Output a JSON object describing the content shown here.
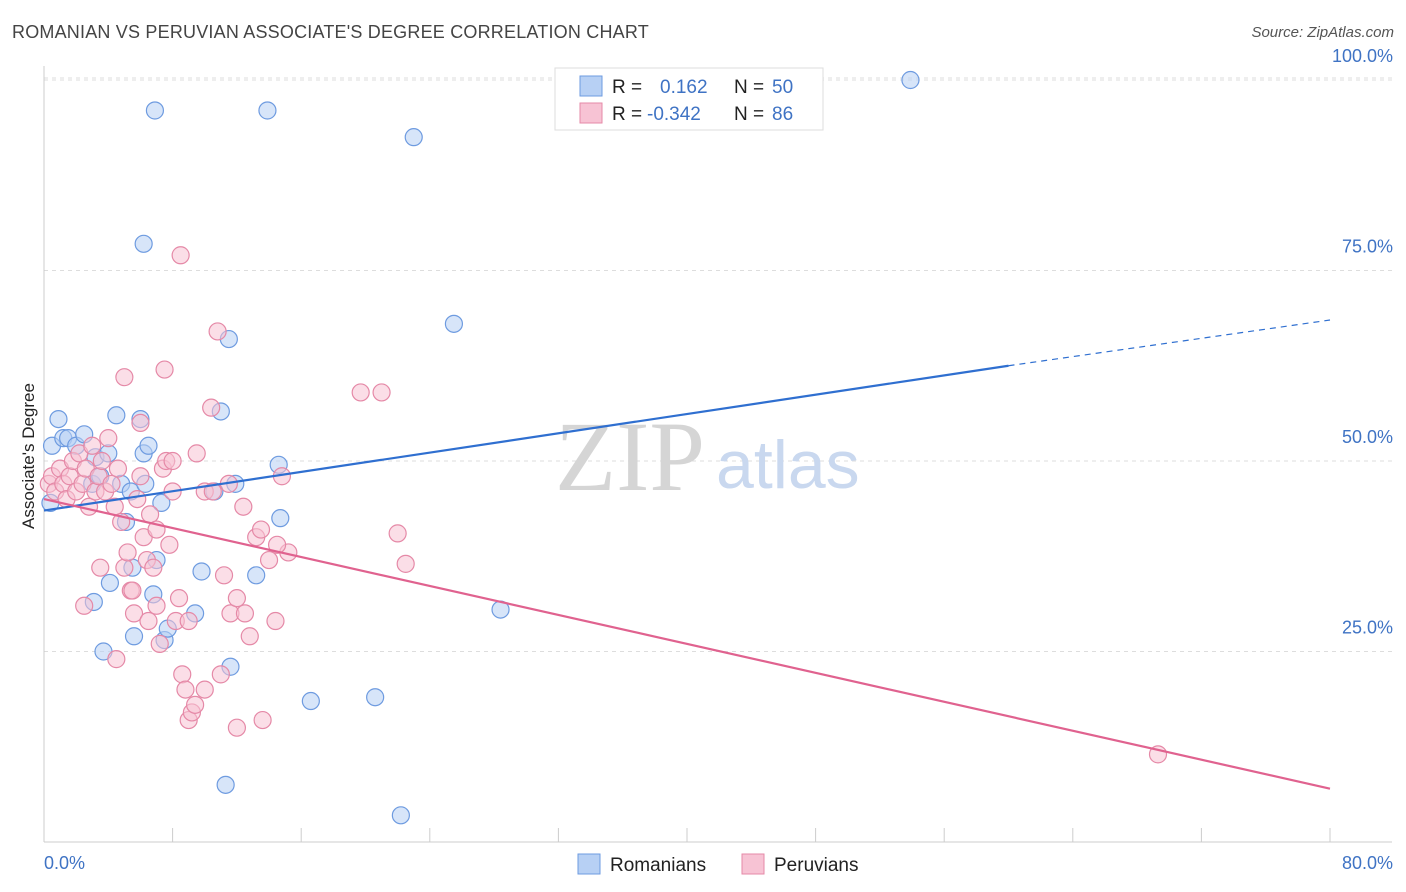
{
  "title": "ROMANIAN VS PERUVIAN ASSOCIATE'S DEGREE CORRELATION CHART",
  "source": "Source: ZipAtlas.com",
  "watermark": {
    "zip": "ZIP",
    "atlas": "atlas"
  },
  "chart_data": {
    "type": "scatter",
    "title": "ROMANIAN VS PERUVIAN ASSOCIATE'S DEGREE CORRELATION CHART",
    "xlabel": "",
    "ylabel": "Associate's Degree",
    "xlim": [
      0,
      80
    ],
    "ylim": [
      0,
      100
    ],
    "x_tick_labels": {
      "left": "0.0%",
      "right": "80.0%"
    },
    "y_ticks": [
      {
        "value": 25,
        "label": "25.0%"
      },
      {
        "value": 50,
        "label": "50.0%"
      },
      {
        "value": 75,
        "label": "75.0%"
      },
      {
        "value": 100,
        "label": "100.0%"
      }
    ],
    "legend_position": "top-center",
    "stats": [
      {
        "r_label": "R =",
        "r_value": "0.162",
        "n_label": "N =",
        "n_value": "50"
      },
      {
        "r_label": "R =",
        "r_value": "-0.342",
        "n_label": "N =",
        "n_value": "86"
      }
    ],
    "series": [
      {
        "name": "Romanians",
        "color": "#6e9be0",
        "fill": "#b7d0f4",
        "trend": {
          "x0": 0,
          "y0": 43.5,
          "x1": 60,
          "y1": 62.5,
          "dash_to_x": 80,
          "dash_to_y": 68.5,
          "color": "#2f6fd0"
        },
        "points": [
          [
            0.4,
            44.5
          ],
          [
            0.5,
            52
          ],
          [
            0.9,
            55.5
          ],
          [
            1.2,
            53
          ],
          [
            1.5,
            53
          ],
          [
            2,
            52
          ],
          [
            2.5,
            53.5
          ],
          [
            3,
            47
          ],
          [
            3.5,
            48
          ],
          [
            3.2,
            50.5
          ],
          [
            4,
            51
          ],
          [
            4.5,
            56
          ],
          [
            4.8,
            47
          ],
          [
            5.1,
            42
          ],
          [
            5.4,
            46
          ],
          [
            6,
            55.5
          ],
          [
            6.2,
            51
          ],
          [
            6.5,
            52
          ],
          [
            6.9,
            96
          ],
          [
            6.2,
            78.5
          ],
          [
            6.3,
            47
          ],
          [
            7.3,
            44.5
          ],
          [
            7,
            37
          ],
          [
            7.5,
            26.5
          ],
          [
            5.5,
            36
          ],
          [
            5.6,
            27
          ],
          [
            6.8,
            32.5
          ],
          [
            7.7,
            28
          ],
          [
            9.4,
            30
          ],
          [
            9.8,
            35.5
          ],
          [
            10.6,
            46
          ],
          [
            11.5,
            66
          ],
          [
            11,
            56.5
          ],
          [
            11.9,
            47
          ],
          [
            11.6,
            23
          ],
          [
            13.2,
            35
          ],
          [
            13.9,
            96
          ],
          [
            14.6,
            49.5
          ],
          [
            14.7,
            42.5
          ],
          [
            16.6,
            18.5
          ],
          [
            20.6,
            19
          ],
          [
            23,
            92.5
          ],
          [
            25.5,
            68
          ],
          [
            28.4,
            30.5
          ],
          [
            53.9,
            100
          ],
          [
            11.3,
            7.5
          ],
          [
            22.2,
            3.5
          ],
          [
            3.1,
            31.5
          ],
          [
            3.7,
            25
          ],
          [
            4.1,
            34
          ]
        ]
      },
      {
        "name": "Peruvians",
        "color": "#e589a7",
        "fill": "#f7c3d4",
        "trend": {
          "x0": 0,
          "y0": 45,
          "x1": 80,
          "y1": 7,
          "color": "#e0628f"
        },
        "points": [
          [
            0.3,
            47
          ],
          [
            0.5,
            48
          ],
          [
            0.7,
            46
          ],
          [
            1,
            49
          ],
          [
            1.2,
            47
          ],
          [
            1.4,
            45
          ],
          [
            1.6,
            48
          ],
          [
            1.8,
            50
          ],
          [
            2,
            46
          ],
          [
            2.2,
            51
          ],
          [
            2.4,
            47
          ],
          [
            2.6,
            49
          ],
          [
            2.8,
            44
          ],
          [
            3,
            52
          ],
          [
            3.2,
            46
          ],
          [
            3.4,
            48
          ],
          [
            3.6,
            50
          ],
          [
            3.8,
            46
          ],
          [
            4,
            53
          ],
          [
            4.2,
            47
          ],
          [
            4.4,
            44
          ],
          [
            4.6,
            49
          ],
          [
            4.8,
            42
          ],
          [
            5,
            36
          ],
          [
            5.2,
            38
          ],
          [
            5.4,
            33
          ],
          [
            5.6,
            30
          ],
          [
            5.8,
            45
          ],
          [
            6,
            48
          ],
          [
            6.2,
            40
          ],
          [
            6.4,
            37
          ],
          [
            6.6,
            43
          ],
          [
            6.8,
            36
          ],
          [
            7,
            31
          ],
          [
            7.2,
            26
          ],
          [
            7.4,
            49
          ],
          [
            7.6,
            50
          ],
          [
            7.8,
            39
          ],
          [
            8,
            46
          ],
          [
            8.2,
            29
          ],
          [
            8.4,
            32
          ],
          [
            8.6,
            22
          ],
          [
            8.8,
            20
          ],
          [
            9,
            16
          ],
          [
            9.2,
            17
          ],
          [
            9.4,
            18
          ],
          [
            10,
            46
          ],
          [
            10.4,
            57
          ],
          [
            10.8,
            67
          ],
          [
            11.2,
            35
          ],
          [
            11.6,
            30
          ],
          [
            12,
            32
          ],
          [
            12.4,
            44
          ],
          [
            12.8,
            27
          ],
          [
            13.2,
            40
          ],
          [
            13.6,
            16
          ],
          [
            14,
            37
          ],
          [
            14.4,
            29
          ],
          [
            14.8,
            48
          ],
          [
            15.2,
            38
          ],
          [
            2.5,
            31
          ],
          [
            3.5,
            36
          ],
          [
            4.5,
            24
          ],
          [
            5.5,
            33
          ],
          [
            6.5,
            29
          ],
          [
            7.5,
            62
          ],
          [
            8.5,
            77
          ],
          [
            9.5,
            51
          ],
          [
            10.5,
            46
          ],
          [
            11.5,
            47
          ],
          [
            12.5,
            30
          ],
          [
            13.5,
            41
          ],
          [
            14.5,
            39
          ],
          [
            22,
            40.5
          ],
          [
            22.5,
            36.5
          ],
          [
            21,
            59
          ],
          [
            19.7,
            59
          ],
          [
            5,
            61
          ],
          [
            6,
            55
          ],
          [
            7,
            41
          ],
          [
            8,
            50
          ],
          [
            9,
            29
          ],
          [
            10,
            20
          ],
          [
            11,
            22
          ],
          [
            12,
            15
          ],
          [
            69.3,
            11.5
          ]
        ]
      }
    ]
  },
  "legend": {
    "items": [
      {
        "label": "Romanians",
        "color": "#b7d0f4",
        "border": "#6e9be0"
      },
      {
        "label": "Peruvians",
        "color": "#f7c3d4",
        "border": "#e589a7"
      }
    ]
  },
  "colors": {
    "blue_text": "#3f73c4",
    "dark_text": "#222222",
    "grid": "#dddddd"
  }
}
